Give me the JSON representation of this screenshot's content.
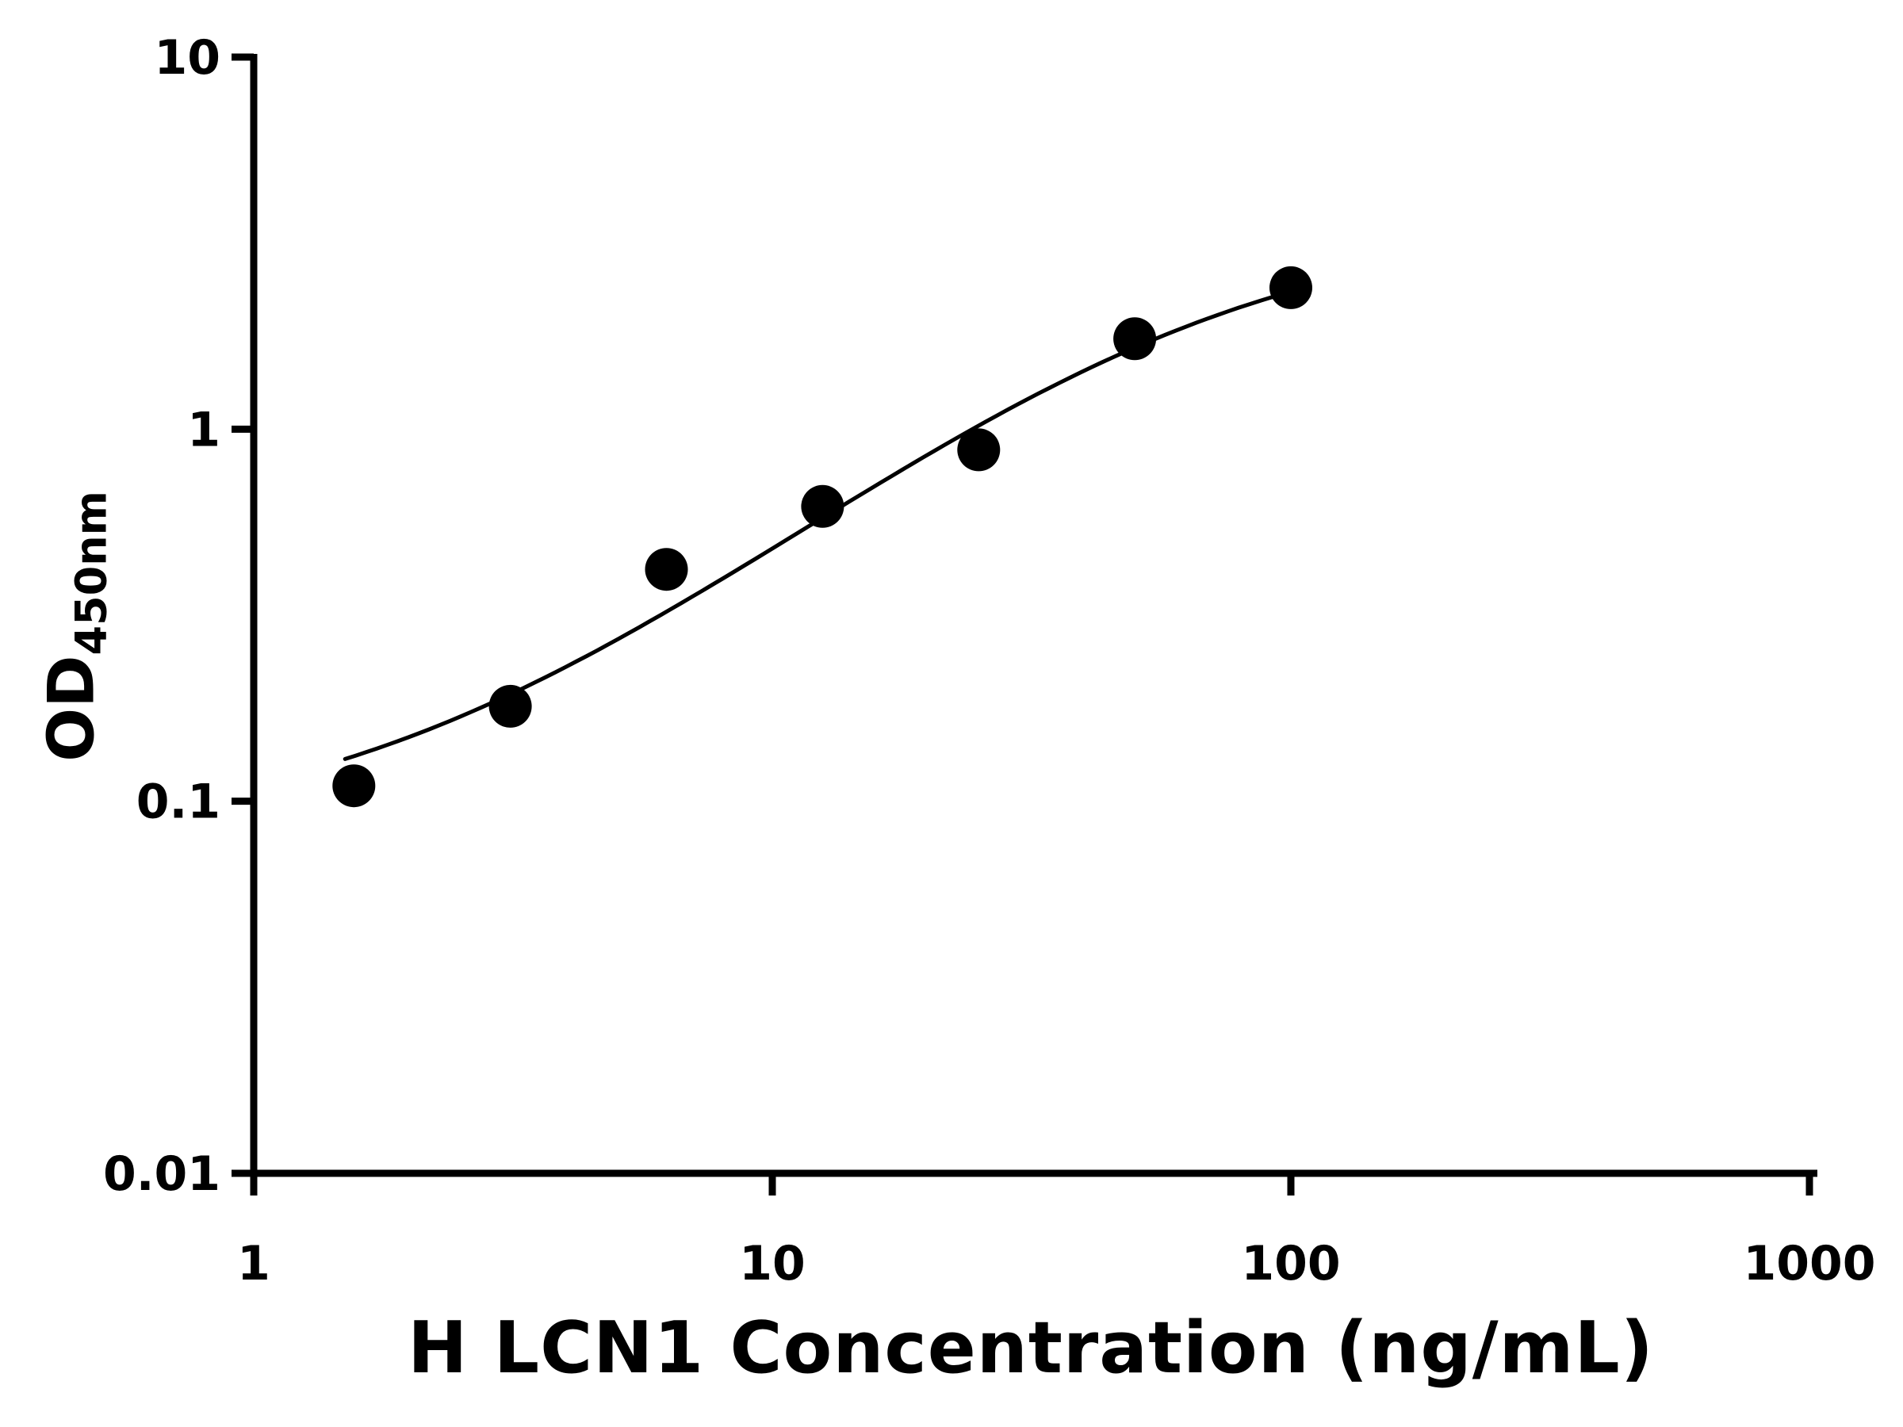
{
  "chart_data": {
    "type": "scatter",
    "title": "",
    "xlabel": "H LCN1 Concentration (ng/mL)",
    "ylabel": {
      "base": "OD",
      "subscript": "450nm"
    },
    "x_scale": "log",
    "y_scale": "log",
    "xlim": [
      1,
      1000
    ],
    "ylim": [
      0.01,
      10
    ],
    "xticks": [
      "1",
      "10",
      "100",
      "1000"
    ],
    "yticks": [
      "0.01",
      "0.1",
      "1",
      "10"
    ],
    "grid": "off",
    "legend": "none",
    "marker": "filled-circle",
    "marker_color": "#000000",
    "line_color": "#000000",
    "points": {
      "x": [
        1.56,
        3.125,
        6.25,
        12.5,
        25,
        50,
        100
      ],
      "y": [
        0.11,
        0.18,
        0.42,
        0.62,
        0.88,
        1.75,
        2.4
      ]
    },
    "fit_curve": {
      "type": "4PL",
      "bottom": 0.08,
      "top": 3.6,
      "ec50": 60,
      "hill": 1.15,
      "x_range": [
        1.5,
        100
      ]
    }
  }
}
